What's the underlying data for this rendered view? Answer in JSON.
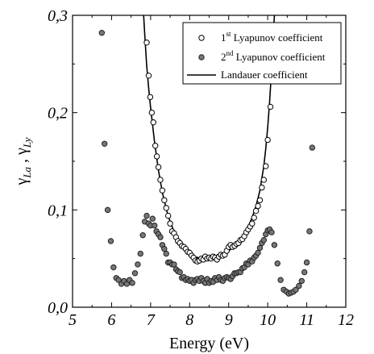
{
  "chart_data": {
    "type": "scatter",
    "xlabel": "Energy (eV)",
    "ylabel_parts": {
      "left_symbol": "γ",
      "left_sub": "La",
      "separator": " , ",
      "right_symbol": "γ",
      "right_sub": "Ly"
    },
    "xlim": [
      5,
      12
    ],
    "ylim": [
      0.0,
      0.3
    ],
    "x_ticks": [
      5,
      6,
      7,
      8,
      9,
      10,
      11,
      12
    ],
    "x_tick_labels": [
      "5",
      "6",
      "7",
      "8",
      "9",
      "10",
      "11",
      "12"
    ],
    "y_ticks": [
      0.0,
      0.1,
      0.2,
      0.3
    ],
    "y_tick_labels": [
      "0,0",
      "0,1",
      "0,2",
      "0,3"
    ],
    "grid": false,
    "legend_position": "top-right",
    "legend": [
      {
        "key": "first",
        "pre": "1",
        "sup": "st",
        "post": " Lyapunov coefficient",
        "marker": "open-circle"
      },
      {
        "key": "second",
        "pre": "2",
        "sup": "nd",
        "post": " Lyapunov coefficient",
        "marker": "filled-circle"
      },
      {
        "key": "landauer",
        "pre": "Landauer coefficient",
        "sup": "",
        "post": "",
        "marker": "line"
      }
    ],
    "series": [
      {
        "key": "first",
        "style": {
          "fill": "#ffffff",
          "stroke": "#000000"
        },
        "points": [
          [
            6.9,
            0.272
          ],
          [
            6.95,
            0.238
          ],
          [
            6.99,
            0.216
          ],
          [
            7.03,
            0.2
          ],
          [
            7.07,
            0.19
          ],
          [
            7.12,
            0.166
          ],
          [
            7.16,
            0.155
          ],
          [
            7.2,
            0.144
          ],
          [
            7.25,
            0.131
          ],
          [
            7.3,
            0.12
          ],
          [
            7.35,
            0.11
          ],
          [
            7.4,
            0.102
          ],
          [
            7.45,
            0.094
          ],
          [
            7.5,
            0.086
          ],
          [
            7.55,
            0.078
          ],
          [
            7.6,
            0.076
          ],
          [
            7.65,
            0.072
          ],
          [
            7.7,
            0.068
          ],
          [
            7.75,
            0.066
          ],
          [
            7.8,
            0.063
          ],
          [
            7.85,
            0.062
          ],
          [
            7.9,
            0.06
          ],
          [
            7.95,
            0.057
          ],
          [
            8.0,
            0.056
          ],
          [
            8.05,
            0.053
          ],
          [
            8.1,
            0.051
          ],
          [
            8.15,
            0.048
          ],
          [
            8.2,
            0.047
          ],
          [
            8.25,
            0.048
          ],
          [
            8.3,
            0.05
          ],
          [
            8.35,
            0.049
          ],
          [
            8.4,
            0.052
          ],
          [
            8.45,
            0.05
          ],
          [
            8.5,
            0.051
          ],
          [
            8.55,
            0.05
          ],
          [
            8.6,
            0.052
          ],
          [
            8.65,
            0.051
          ],
          [
            8.7,
            0.049
          ],
          [
            8.75,
            0.052
          ],
          [
            8.8,
            0.054
          ],
          [
            8.85,
            0.053
          ],
          [
            8.9,
            0.054
          ],
          [
            8.95,
            0.058
          ],
          [
            9.0,
            0.062
          ],
          [
            9.05,
            0.064
          ],
          [
            9.1,
            0.062
          ],
          [
            9.15,
            0.063
          ],
          [
            9.2,
            0.065
          ],
          [
            9.25,
            0.066
          ],
          [
            9.3,
            0.069
          ],
          [
            9.35,
            0.07
          ],
          [
            9.4,
            0.073
          ],
          [
            9.45,
            0.077
          ],
          [
            9.5,
            0.08
          ],
          [
            9.55,
            0.083
          ],
          [
            9.6,
            0.086
          ],
          [
            9.65,
            0.092
          ],
          [
            9.7,
            0.099
          ],
          [
            9.75,
            0.104
          ],
          [
            9.8,
            0.11
          ],
          [
            9.85,
            0.123
          ],
          [
            9.9,
            0.131
          ],
          [
            9.95,
            0.145
          ],
          [
            10.0,
            0.172
          ],
          [
            10.07,
            0.206
          ]
        ]
      },
      {
        "key": "second",
        "style": {
          "fill": "#777777",
          "stroke": "#222222"
        },
        "points": [
          [
            5.75,
            0.282
          ],
          [
            5.82,
            0.168
          ],
          [
            5.9,
            0.1
          ],
          [
            5.98,
            0.068
          ],
          [
            6.05,
            0.041
          ],
          [
            6.12,
            0.03
          ],
          [
            6.18,
            0.028
          ],
          [
            6.25,
            0.024
          ],
          [
            6.32,
            0.027
          ],
          [
            6.39,
            0.024
          ],
          [
            6.46,
            0.028
          ],
          [
            6.53,
            0.025
          ],
          [
            6.6,
            0.035
          ],
          [
            6.67,
            0.044
          ],
          [
            6.74,
            0.055
          ],
          [
            6.8,
            0.074
          ],
          [
            6.85,
            0.088
          ],
          [
            6.9,
            0.094
          ],
          [
            6.95,
            0.086
          ],
          [
            7.0,
            0.084
          ],
          [
            7.05,
            0.091
          ],
          [
            7.1,
            0.084
          ],
          [
            7.15,
            0.078
          ],
          [
            7.2,
            0.075
          ],
          [
            7.25,
            0.072
          ],
          [
            7.3,
            0.064
          ],
          [
            7.35,
            0.06
          ],
          [
            7.4,
            0.055
          ],
          [
            7.45,
            0.046
          ],
          [
            7.5,
            0.046
          ],
          [
            7.55,
            0.044
          ],
          [
            7.6,
            0.044
          ],
          [
            7.65,
            0.039
          ],
          [
            7.7,
            0.037
          ],
          [
            7.75,
            0.036
          ],
          [
            7.8,
            0.03
          ],
          [
            7.85,
            0.031
          ],
          [
            7.9,
            0.028
          ],
          [
            7.95,
            0.029
          ],
          [
            8.0,
            0.027
          ],
          [
            8.05,
            0.028
          ],
          [
            8.1,
            0.025
          ],
          [
            8.15,
            0.028
          ],
          [
            8.2,
            0.029
          ],
          [
            8.25,
            0.027
          ],
          [
            8.3,
            0.03
          ],
          [
            8.35,
            0.027
          ],
          [
            8.4,
            0.025
          ],
          [
            8.45,
            0.029
          ],
          [
            8.5,
            0.025
          ],
          [
            8.55,
            0.027
          ],
          [
            8.6,
            0.026
          ],
          [
            8.65,
            0.03
          ],
          [
            8.7,
            0.028
          ],
          [
            8.75,
            0.031
          ],
          [
            8.8,
            0.028
          ],
          [
            8.85,
            0.027
          ],
          [
            8.9,
            0.03
          ],
          [
            8.95,
            0.031
          ],
          [
            9.0,
            0.03
          ],
          [
            9.05,
            0.029
          ],
          [
            9.1,
            0.032
          ],
          [
            9.15,
            0.035
          ],
          [
            9.2,
            0.035
          ],
          [
            9.25,
            0.036
          ],
          [
            9.3,
            0.036
          ],
          [
            9.35,
            0.04
          ],
          [
            9.4,
            0.041
          ],
          [
            9.45,
            0.045
          ],
          [
            9.5,
            0.044
          ],
          [
            9.55,
            0.048
          ],
          [
            9.6,
            0.047
          ],
          [
            9.65,
            0.051
          ],
          [
            9.7,
            0.053
          ],
          [
            9.75,
            0.056
          ],
          [
            9.8,
            0.061
          ],
          [
            9.85,
            0.066
          ],
          [
            9.9,
            0.069
          ],
          [
            9.95,
            0.075
          ],
          [
            10.0,
            0.079
          ],
          [
            10.05,
            0.08
          ],
          [
            10.1,
            0.077
          ],
          [
            10.17,
            0.064
          ],
          [
            10.25,
            0.045
          ],
          [
            10.33,
            0.028
          ],
          [
            10.41,
            0.018
          ],
          [
            10.48,
            0.016
          ],
          [
            10.54,
            0.014
          ],
          [
            10.6,
            0.015
          ],
          [
            10.66,
            0.016
          ],
          [
            10.72,
            0.018
          ],
          [
            10.8,
            0.022
          ],
          [
            10.87,
            0.027
          ],
          [
            10.94,
            0.036
          ],
          [
            11.0,
            0.046
          ],
          [
            11.07,
            0.078
          ],
          [
            11.14,
            0.164
          ]
        ]
      },
      {
        "key": "landauer",
        "style": {
          "stroke": "#000000"
        },
        "points": [
          [
            6.8,
            0.315
          ],
          [
            6.85,
            0.28
          ],
          [
            6.9,
            0.248
          ],
          [
            6.95,
            0.225
          ],
          [
            7.0,
            0.205
          ],
          [
            7.1,
            0.17
          ],
          [
            7.2,
            0.141
          ],
          [
            7.3,
            0.118
          ],
          [
            7.4,
            0.101
          ],
          [
            7.5,
            0.088
          ],
          [
            7.6,
            0.078
          ],
          [
            7.7,
            0.07
          ],
          [
            7.8,
            0.064
          ],
          [
            7.9,
            0.059
          ],
          [
            8.0,
            0.056
          ],
          [
            8.1,
            0.053
          ],
          [
            8.2,
            0.051
          ],
          [
            8.3,
            0.0505
          ],
          [
            8.4,
            0.05
          ],
          [
            8.5,
            0.05
          ],
          [
            8.6,
            0.0505
          ],
          [
            8.7,
            0.051
          ],
          [
            8.8,
            0.0525
          ],
          [
            8.9,
            0.055
          ],
          [
            9.0,
            0.058
          ],
          [
            9.1,
            0.061
          ],
          [
            9.2,
            0.065
          ],
          [
            9.3,
            0.07
          ],
          [
            9.4,
            0.076
          ],
          [
            9.5,
            0.083
          ],
          [
            9.6,
            0.092
          ],
          [
            9.7,
            0.104
          ],
          [
            9.8,
            0.12
          ],
          [
            9.9,
            0.145
          ],
          [
            9.95,
            0.163
          ],
          [
            10.0,
            0.185
          ],
          [
            10.05,
            0.212
          ],
          [
            10.1,
            0.245
          ],
          [
            10.15,
            0.285
          ],
          [
            10.2,
            0.32
          ]
        ]
      }
    ]
  }
}
